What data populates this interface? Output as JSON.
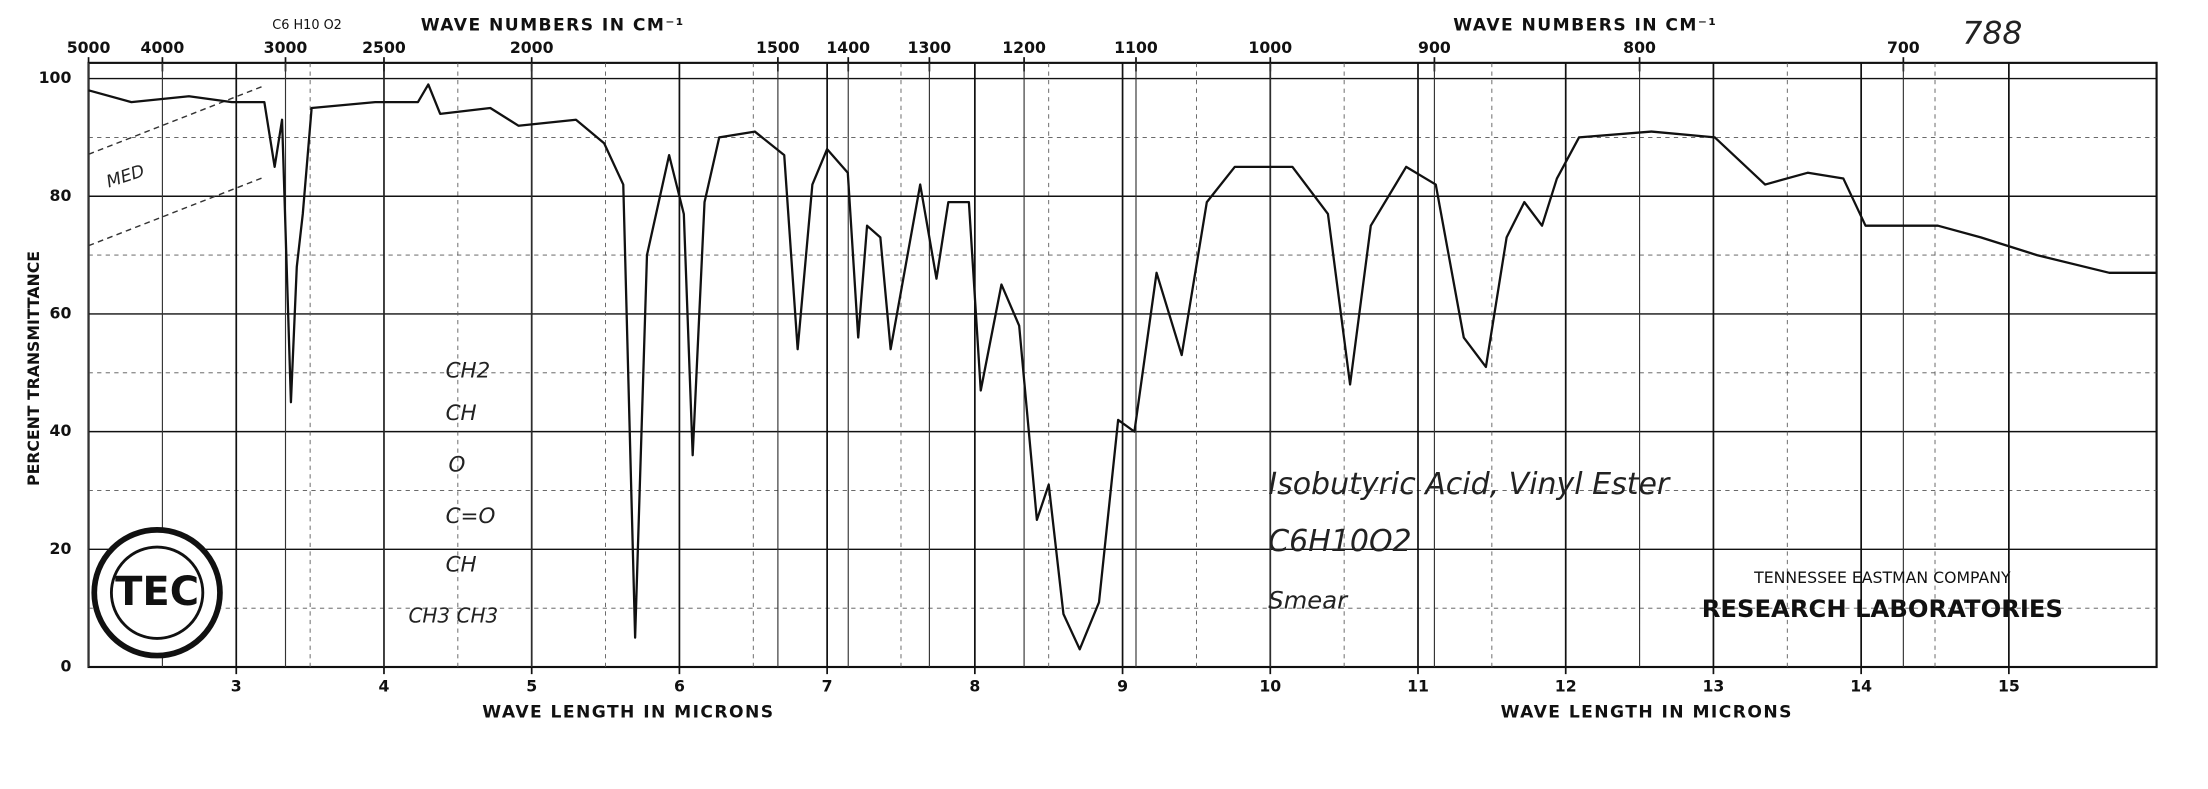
{
  "chart_data": {
    "type": "line",
    "top_labels": [
      "WAVE NUMBERS IN CM⁻¹",
      "WAVE NUMBERS IN CM⁻¹"
    ],
    "x_labels": [
      "WAVE LENGTH IN MICRONS",
      "WAVE LENGTH IN MICRONS"
    ],
    "y_label": "PERCENT TRANSMITTANCE",
    "sheet_number": "788",
    "header_formula": "C6 H10 O2",
    "compound": "Isobutyric Acid, Vinyl Ester",
    "formula": "C6H10O2",
    "sample": "Smear",
    "structure": [
      "CH2",
      "CH",
      "O",
      "C=O",
      "CH",
      "CH3 CH3"
    ],
    "margin_note": "MED",
    "company": "TENNESSEE EASTMAN COMPANY",
    "lab": "RESEARCH LABORATORIES",
    "logo": "TEC",
    "xlim": [
      2,
      16
    ],
    "xticks": [
      3,
      4,
      5,
      6,
      7,
      8,
      9,
      10,
      11,
      12,
      13,
      14,
      15
    ],
    "top_ticks": [
      5000,
      4000,
      3000,
      2500,
      2000,
      1500,
      1400,
      1300,
      1200,
      1100,
      1000,
      900,
      800,
      700
    ],
    "ylim": [
      0,
      100
    ],
    "yticks": [
      0,
      20,
      40,
      60,
      80,
      100
    ],
    "grid": true,
    "x": [
      2.0,
      2.29,
      2.68,
      2.97,
      3.19,
      3.26,
      3.31,
      3.37,
      3.41,
      3.45,
      3.51,
      3.94,
      4.23,
      4.3,
      4.38,
      4.72,
      4.91,
      5.3,
      5.49,
      5.62,
      5.7,
      5.78,
      5.93,
      6.03,
      6.09,
      6.17,
      6.27,
      6.51,
      6.71,
      6.8,
      6.9,
      7.0,
      7.14,
      7.21,
      7.27,
      7.36,
      7.43,
      7.63,
      7.74,
      7.82,
      7.96,
      8.04,
      8.18,
      8.3,
      8.42,
      8.5,
      8.6,
      8.71,
      8.84,
      8.97,
      9.08,
      9.23,
      9.4,
      9.57,
      9.76,
      10.15,
      10.39,
      10.54,
      10.68,
      10.92,
      11.12,
      11.31,
      11.46,
      11.6,
      11.72,
      11.84,
      11.94,
      12.09,
      12.58,
      13.01,
      13.35,
      13.64,
      13.88,
      14.03,
      14.52,
      14.81,
      15.19,
      15.68,
      16.0
    ],
    "series": [
      {
        "name": "Isobutyric Acid, Vinyl Ester",
        "color": "#111111",
        "values": [
          98,
          96,
          97,
          96,
          96,
          85,
          93,
          45,
          68,
          77,
          95,
          96,
          96,
          99,
          94,
          95,
          92,
          93,
          89,
          82,
          5,
          70,
          87,
          77,
          36,
          79,
          90,
          91,
          87,
          54,
          82,
          88,
          84,
          56,
          75,
          73,
          54,
          82,
          66,
          79,
          79,
          47,
          65,
          58,
          25,
          31,
          9,
          3,
          11,
          42,
          40,
          67,
          53,
          79,
          85,
          85,
          77,
          48,
          75,
          85,
          82,
          56,
          51,
          73,
          79,
          75,
          83,
          90,
          91,
          90,
          82,
          84,
          83,
          75,
          75,
          73,
          70,
          67,
          67
        ]
      }
    ]
  }
}
